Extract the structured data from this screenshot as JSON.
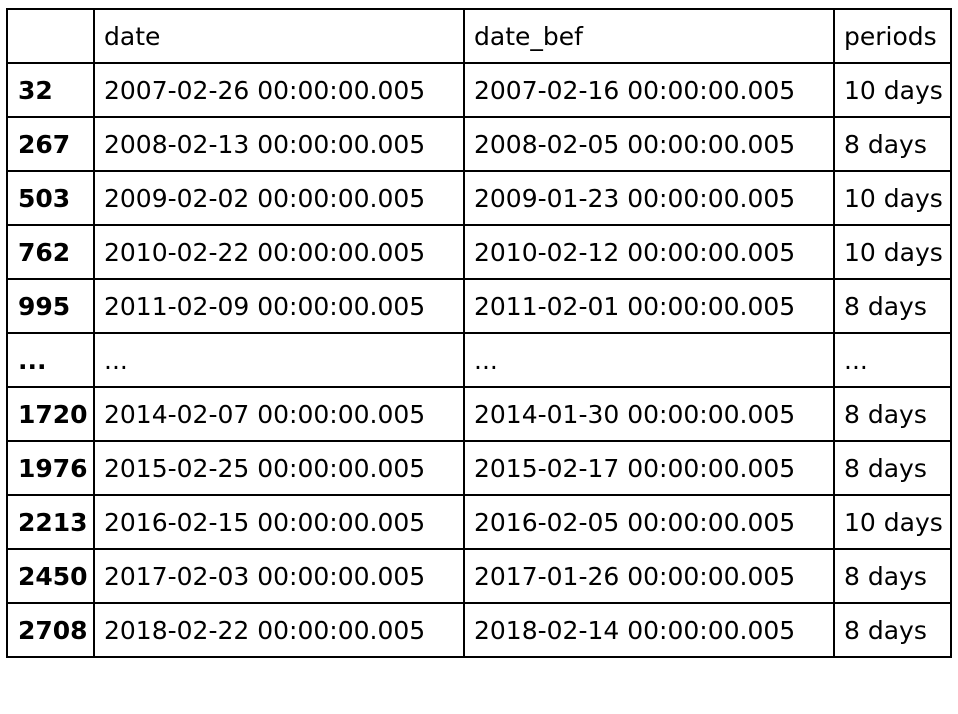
{
  "table": {
    "columns": [
      "",
      "date",
      "date_bef",
      "periods"
    ],
    "rows": [
      {
        "index": "32",
        "date": "2007-02-26 00:00:00.005",
        "date_bef": "2007-02-16 00:00:00.005",
        "periods": "10 days"
      },
      {
        "index": "267",
        "date": "2008-02-13 00:00:00.005",
        "date_bef": "2008-02-05 00:00:00.005",
        "periods": "8 days"
      },
      {
        "index": "503",
        "date": "2009-02-02 00:00:00.005",
        "date_bef": "2009-01-23 00:00:00.005",
        "periods": "10 days"
      },
      {
        "index": "762",
        "date": "2010-02-22 00:00:00.005",
        "date_bef": "2010-02-12 00:00:00.005",
        "periods": "10 days"
      },
      {
        "index": "995",
        "date": "2011-02-09 00:00:00.005",
        "date_bef": "2011-02-01 00:00:00.005",
        "periods": "8 days"
      },
      {
        "index": "...",
        "date": "...",
        "date_bef": "...",
        "periods": "..."
      },
      {
        "index": "1720",
        "date": "2014-02-07 00:00:00.005",
        "date_bef": "2014-01-30 00:00:00.005",
        "periods": "8 days"
      },
      {
        "index": "1976",
        "date": "2015-02-25 00:00:00.005",
        "date_bef": "2015-02-17 00:00:00.005",
        "periods": "8 days"
      },
      {
        "index": "2213",
        "date": "2016-02-15 00:00:00.005",
        "date_bef": "2016-02-05 00:00:00.005",
        "periods": "10 days"
      },
      {
        "index": "2450",
        "date": "2017-02-03 00:00:00.005",
        "date_bef": "2017-01-26 00:00:00.005",
        "periods": "8 days"
      },
      {
        "index": "2708",
        "date": "2018-02-22 00:00:00.005",
        "date_bef": "2018-02-14 00:00:00.005",
        "periods": "8 days"
      }
    ]
  }
}
